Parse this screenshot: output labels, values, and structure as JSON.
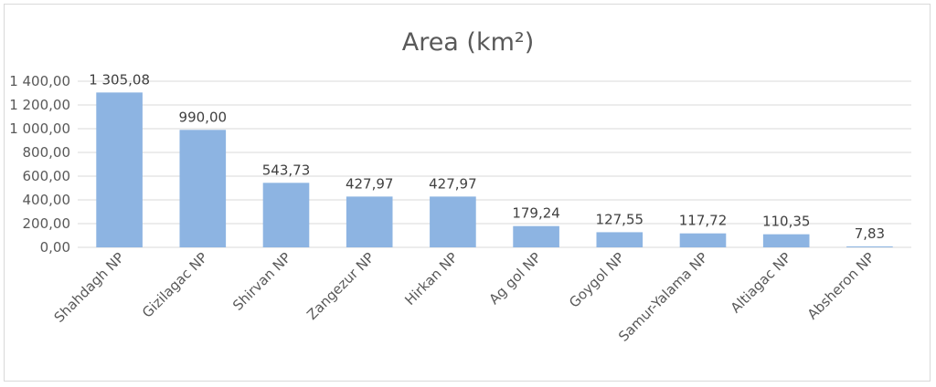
{
  "chart_data": {
    "type": "bar",
    "title": "Area (km²)",
    "categories": [
      "Shahdagh NP",
      "Gizilagac NP",
      "Shirvan NP",
      "Zangezur NP",
      "Hirkan NP",
      "Ag gol NP",
      "Goygol NP",
      "Samur-Yalama NP",
      "Altiagac NP",
      "Absheron NP"
    ],
    "values": [
      1305.08,
      990.0,
      543.73,
      427.97,
      427.97,
      179.24,
      127.55,
      117.72,
      110.35,
      7.83
    ],
    "data_labels": [
      "1 305,08",
      "990,00",
      "543,73",
      "427,97",
      "427,97",
      "179,24",
      "127,55",
      "117,72",
      "110,35",
      "7,83"
    ],
    "ylim": [
      0,
      1400
    ],
    "yticks": [
      0,
      200,
      400,
      600,
      800,
      1000,
      1200,
      1400
    ],
    "ytick_labels": [
      "0,00",
      "200,00",
      "400,00",
      "600,00",
      "800,00",
      "1 000,00",
      "1 200,00",
      "1 400,00"
    ],
    "grid": true,
    "legend": "none",
    "bar_color": "#8db4e2",
    "grid_color": "#d9d9d9"
  }
}
